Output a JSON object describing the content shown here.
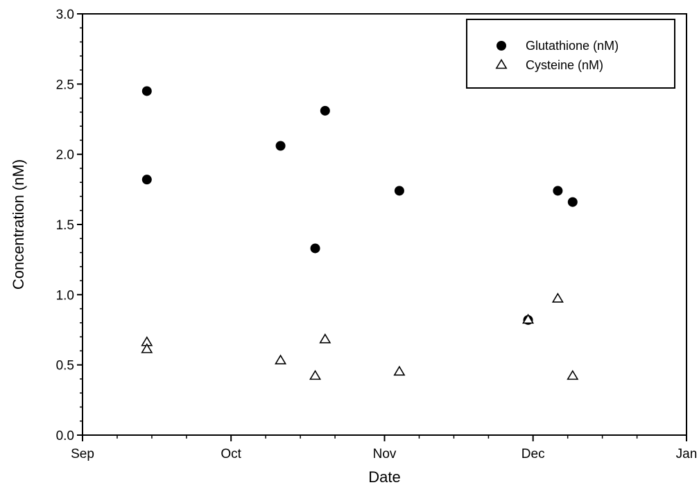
{
  "chart_data": {
    "type": "scatter",
    "title": "",
    "xlabel": "Date",
    "ylabel": "Concentration (nM)",
    "xlim": [
      "2000-09-01",
      "2001-01-01"
    ],
    "ylim": [
      0.0,
      3.0
    ],
    "x_ticks": [
      {
        "label": "Sep",
        "date": "2000-09-01"
      },
      {
        "label": "Oct",
        "date": "2000-10-01"
      },
      {
        "label": "Nov",
        "date": "2000-11-01"
      },
      {
        "label": "Dec",
        "date": "2000-12-01"
      },
      {
        "label": "Jan",
        "date": "2001-01-01"
      }
    ],
    "y_ticks": [
      {
        "label": "0.0",
        "value": 0.0
      },
      {
        "label": "0.5",
        "value": 0.5
      },
      {
        "label": "1.0",
        "value": 1.0
      },
      {
        "label": "1.5",
        "value": 1.5
      },
      {
        "label": "2.0",
        "value": 2.0
      },
      {
        "label": "2.5",
        "value": 2.5
      },
      {
        "label": "3.0",
        "value": 3.0
      }
    ],
    "grid": false,
    "legend": "top-right",
    "series": [
      {
        "name": "Glutathione (nM)",
        "marker": "filled-circle",
        "color": "#000000",
        "points": [
          {
            "x": "2000-09-14",
            "y": 2.45
          },
          {
            "x": "2000-09-14",
            "y": 1.82
          },
          {
            "x": "2000-10-11",
            "y": 2.06
          },
          {
            "x": "2000-10-18",
            "y": 1.33
          },
          {
            "x": "2000-10-20",
            "y": 2.31
          },
          {
            "x": "2000-11-04",
            "y": 1.74
          },
          {
            "x": "2000-11-30",
            "y": 0.82
          },
          {
            "x": "2000-12-06",
            "y": 1.74
          },
          {
            "x": "2000-12-09",
            "y": 1.66
          }
        ]
      },
      {
        "name": "Cysteine (nM)",
        "marker": "open-triangle",
        "color": "#000000",
        "points": [
          {
            "x": "2000-09-14",
            "y": 0.66
          },
          {
            "x": "2000-09-14",
            "y": 0.61
          },
          {
            "x": "2000-10-11",
            "y": 0.53
          },
          {
            "x": "2000-10-18",
            "y": 0.42
          },
          {
            "x": "2000-10-20",
            "y": 0.68
          },
          {
            "x": "2000-11-04",
            "y": 0.45
          },
          {
            "x": "2000-11-30",
            "y": 0.82
          },
          {
            "x": "2000-12-06",
            "y": 0.97
          },
          {
            "x": "2000-12-09",
            "y": 0.42
          }
        ]
      }
    ]
  }
}
